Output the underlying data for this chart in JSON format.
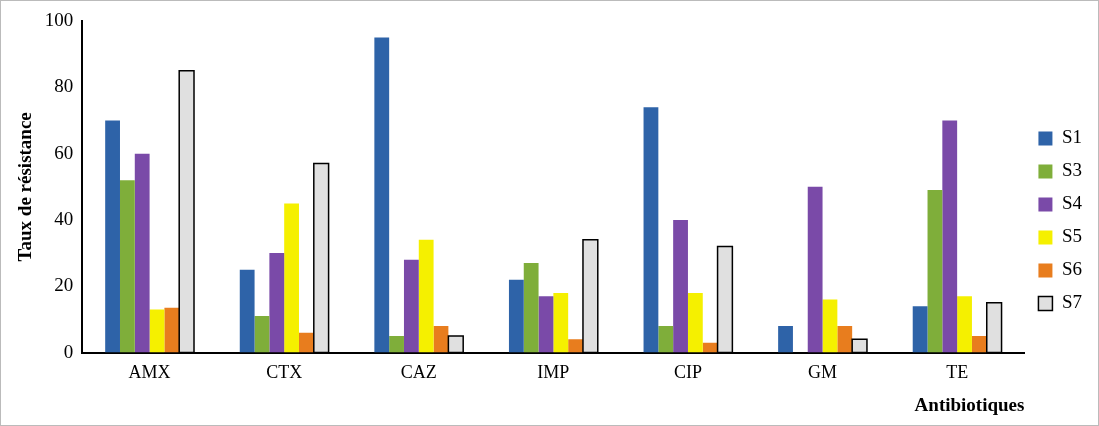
{
  "chart_data": {
    "type": "bar",
    "xlabel": "Antibiotiques",
    "ylabel": "Taux de résistance",
    "categories": [
      "AMX",
      "CTX",
      "CAZ",
      "IMP",
      "CIP",
      "GM",
      "TE"
    ],
    "series": [
      {
        "name": "S1",
        "color": "#2e63a8",
        "values": [
          70,
          25,
          95,
          22,
          74,
          8,
          14
        ]
      },
      {
        "name": "S3",
        "color": "#7fae3a",
        "values": [
          52,
          11,
          5,
          27,
          8,
          0,
          49
        ]
      },
      {
        "name": "S4",
        "color": "#7a4aa8",
        "values": [
          60,
          30,
          28,
          17,
          40,
          50,
          70
        ]
      },
      {
        "name": "S5",
        "color": "#f5f000",
        "values": [
          13,
          45,
          34,
          18,
          18,
          16,
          17
        ]
      },
      {
        "name": "S6",
        "color": "#e87d1e",
        "values": [
          13.5,
          6,
          8,
          4,
          3,
          8,
          5
        ]
      },
      {
        "name": "S7",
        "color": "#e0e0e0",
        "values": [
          85,
          57,
          5,
          34,
          32,
          4,
          15
        ]
      }
    ],
    "ylim": [
      0,
      100
    ],
    "yticks": [
      0,
      20,
      40,
      60,
      80,
      100
    ],
    "grid": false,
    "legend": "right"
  }
}
